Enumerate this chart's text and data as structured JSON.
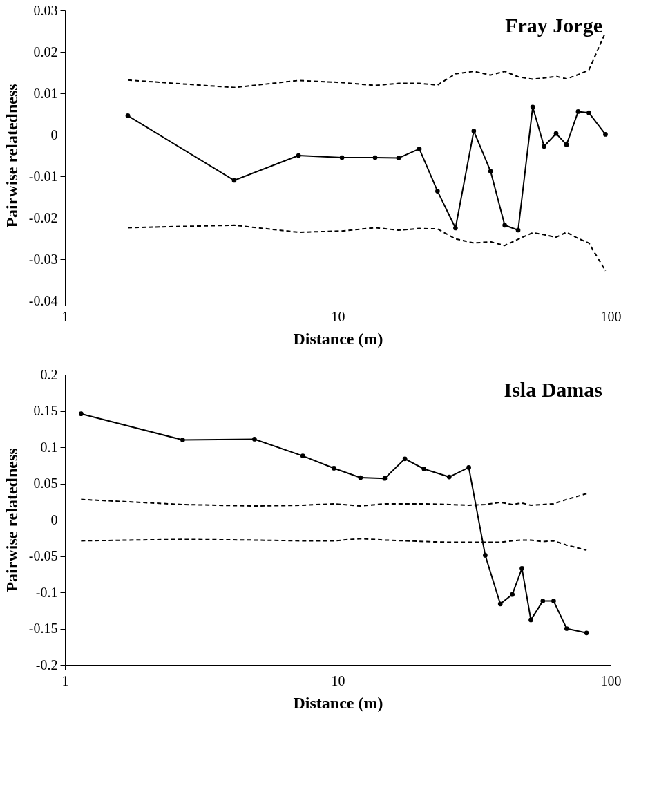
{
  "chart_data": [
    {
      "type": "line",
      "title": "Fray Jorge",
      "xlabel": "Distance (m)",
      "ylabel": "Pairwise relatedness",
      "log": "x",
      "xlim": [
        1,
        100
      ],
      "xticks": [
        1,
        10,
        100
      ],
      "ylim": [
        -0.04,
        0.03
      ],
      "yticks": [
        -0.04,
        -0.03,
        -0.02,
        -0.01,
        0,
        0.01,
        0.02,
        0.03
      ],
      "x": [
        1.7,
        4.17,
        7.18,
        10.36,
        13.7,
        16.7,
        19.9,
        23.2,
        27.0,
        31.5,
        36.3,
        40.9,
        45.8,
        51.8,
        57.0,
        63.1,
        68.9,
        76.0,
        83.2,
        95.7
      ],
      "series": [
        {
          "color": "#000000",
          "line_style": "solid",
          "marker": "circle",
          "values": [
            0.0046,
            -0.011,
            -0.005,
            -0.0055,
            -0.0055,
            -0.0056,
            -0.0034,
            -0.0136,
            -0.0225,
            0.0009,
            -0.0088,
            -0.0218,
            -0.023,
            0.0067,
            -0.0028,
            0.0003,
            -0.0024,
            0.0056,
            0.0053,
            0.0001
          ]
        },
        {
          "color": "#000000",
          "line_style": "dashed",
          "marker": "none",
          "values": [
            0.0132,
            0.0114,
            0.0131,
            0.0126,
            0.0119,
            0.0124,
            0.0124,
            0.012,
            0.0147,
            0.0153,
            0.0144,
            0.0153,
            0.014,
            0.0134,
            0.0137,
            0.0141,
            0.0135,
            0.0145,
            0.0156,
            0.0247
          ]
        },
        {
          "color": "#000000",
          "line_style": "dashed",
          "marker": "none",
          "values": [
            -0.0224,
            -0.0218,
            -0.0235,
            -0.0232,
            -0.0224,
            -0.023,
            -0.0226,
            -0.0227,
            -0.0251,
            -0.0261,
            -0.0258,
            -0.0267,
            -0.0252,
            -0.0236,
            -0.0241,
            -0.0247,
            -0.0235,
            -0.025,
            -0.0261,
            -0.0328
          ]
        }
      ]
    },
    {
      "type": "line",
      "title": "Isla Damas",
      "xlabel": "Distance (m)",
      "ylabel": "Pairwise relatedness",
      "log": "x",
      "xlim": [
        1,
        100
      ],
      "xticks": [
        1,
        10,
        100
      ],
      "ylim": [
        -0.2,
        0.2
      ],
      "yticks": [
        -0.2,
        -0.15,
        -0.1,
        -0.05,
        0,
        0.05,
        0.1,
        0.15,
        0.2
      ],
      "x": [
        1.146,
        2.7,
        4.95,
        7.44,
        9.68,
        12.11,
        14.86,
        17.62,
        20.7,
        25.6,
        30.2,
        34.7,
        39.4,
        43.6,
        47.3,
        51.0,
        56.4,
        61.8,
        69.0,
        81.6
      ],
      "series": [
        {
          "color": "#000000",
          "line_style": "solid",
          "marker": "circle",
          "values": [
            0.146,
            0.11,
            0.111,
            0.088,
            0.071,
            0.058,
            0.057,
            0.084,
            0.07,
            0.059,
            0.072,
            -0.049,
            -0.116,
            -0.103,
            -0.067,
            -0.138,
            -0.112,
            -0.112,
            -0.15,
            -0.156
          ]
        },
        {
          "color": "#000000",
          "line_style": "dashed",
          "marker": "none",
          "values": [
            0.028,
            0.021,
            0.019,
            0.02,
            0.022,
            0.019,
            0.022,
            0.022,
            0.022,
            0.021,
            0.02,
            0.021,
            0.024,
            0.021,
            0.023,
            0.02,
            0.021,
            0.022,
            0.028,
            0.036
          ]
        },
        {
          "color": "#000000",
          "line_style": "dashed",
          "marker": "none",
          "values": [
            -0.029,
            -0.027,
            -0.028,
            -0.029,
            -0.029,
            -0.026,
            -0.028,
            -0.029,
            -0.03,
            -0.031,
            -0.031,
            -0.031,
            -0.031,
            -0.029,
            -0.028,
            -0.028,
            -0.03,
            -0.029,
            -0.035,
            -0.042
          ]
        }
      ]
    }
  ]
}
